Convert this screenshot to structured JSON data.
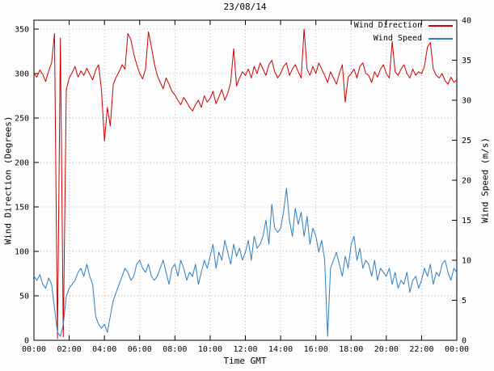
{
  "title": "23/08/14",
  "legend": {
    "items": [
      {
        "label": "Wind Direction",
        "color": "#cc0000"
      },
      {
        "label": "Wind Speed",
        "color": "#2f7fc1"
      }
    ]
  },
  "axes": {
    "x": {
      "label": "Time GMT",
      "tick_labels": [
        "00:00",
        "02:00",
        "04:00",
        "06:00",
        "08:00",
        "10:00",
        "12:00",
        "14:00",
        "16:00",
        "18:00",
        "20:00",
        "22:00",
        "00:00"
      ],
      "tick_hours": [
        0,
        2,
        4,
        6,
        8,
        10,
        12,
        14,
        16,
        18,
        20,
        22,
        24
      ],
      "range": [
        0,
        24
      ]
    },
    "y_left": {
      "label": "Wind Direction (Degrees)",
      "ticks": [
        0,
        50,
        100,
        150,
        200,
        250,
        300,
        350
      ],
      "range": [
        0,
        360
      ]
    },
    "y_right": {
      "label": "Wind Speed (m/s)",
      "ticks": [
        0,
        5,
        10,
        15,
        20,
        25,
        30,
        35,
        40
      ],
      "range": [
        0,
        40
      ]
    }
  },
  "chart_data": {
    "type": "line",
    "title": "23/08/14",
    "xlabel": "Time GMT",
    "x_unit": "hours GMT",
    "sample_interval_minutes": 10,
    "x_range": [
      0,
      24
    ],
    "grid": true,
    "legend_position": "top-right",
    "series": [
      {
        "name": "Wind Direction",
        "axis": "left",
        "units": "degrees",
        "color": "#cc0000",
        "values": [
          300,
          296,
          304,
          299,
          291,
          303,
          312,
          345,
          2,
          340,
          4,
          282,
          295,
          301,
          308,
          296,
          303,
          298,
          306,
          299,
          293,
          304,
          310,
          282,
          224,
          262,
          241,
          288,
          296,
          302,
          310,
          305,
          345,
          338,
          322,
          310,
          300,
          294,
          305,
          347,
          330,
          311,
          298,
          290,
          283,
          295,
          288,
          280,
          276,
          270,
          265,
          273,
          268,
          262,
          258,
          265,
          270,
          262,
          275,
          268,
          272,
          280,
          266,
          274,
          282,
          270,
          278,
          290,
          328,
          286,
          295,
          302,
          298,
          305,
          295,
          308,
          300,
          312,
          305,
          298,
          310,
          315,
          302,
          295,
          300,
          308,
          312,
          298,
          305,
          310,
          302,
          295,
          350,
          305,
          298,
          308,
          300,
          312,
          305,
          298,
          290,
          302,
          295,
          288,
          300,
          310,
          268,
          296,
          300,
          305,
          295,
          308,
          312,
          300,
          298,
          290,
          302,
          296,
          305,
          310,
          300,
          295,
          336,
          302,
          298,
          305,
          310,
          300,
          295,
          305,
          298,
          302,
          300,
          308,
          330,
          335,
          305,
          298,
          295,
          300,
          292,
          288,
          296,
          290,
          293
        ]
      },
      {
        "name": "Wind Speed",
        "axis": "right",
        "units": "m/s",
        "color": "#2f7fc1",
        "values": [
          8,
          7.5,
          8.2,
          7,
          6.5,
          7.8,
          7,
          4,
          1,
          0.5,
          2,
          5.5,
          6.5,
          7,
          7.5,
          8.5,
          9,
          8,
          9.5,
          8,
          7,
          3,
          2,
          1.5,
          2,
          1,
          3,
          5,
          6,
          7,
          8,
          9,
          8.5,
          7.5,
          8,
          9.5,
          10,
          9,
          8.5,
          9.5,
          8,
          7.5,
          8,
          9,
          10,
          8.5,
          7,
          9,
          9.5,
          8,
          10,
          9,
          7.5,
          8.5,
          8,
          9.5,
          7,
          8.5,
          10,
          9,
          10.5,
          12,
          9,
          11,
          10,
          12.5,
          11,
          9.5,
          12,
          10.5,
          11.5,
          10,
          11,
          12.5,
          10,
          13,
          11.5,
          12,
          13,
          15,
          12,
          17,
          14,
          13.5,
          14,
          16,
          19,
          15,
          13,
          16.5,
          14.5,
          16,
          13,
          15.5,
          12,
          14,
          13,
          11,
          12.5,
          10,
          0.5,
          9,
          10,
          11,
          9.5,
          8,
          10.5,
          9,
          12,
          13,
          10,
          11.5,
          9,
          10,
          9.5,
          8,
          10,
          7.5,
          9,
          8.5,
          8,
          9,
          7,
          8.5,
          6.5,
          7.5,
          7,
          8.5,
          6,
          7.5,
          8,
          6.5,
          7.5,
          9,
          8,
          9.5,
          7,
          8.5,
          8,
          9.5,
          10,
          8.5,
          7.5,
          9,
          8.5
        ]
      }
    ]
  }
}
